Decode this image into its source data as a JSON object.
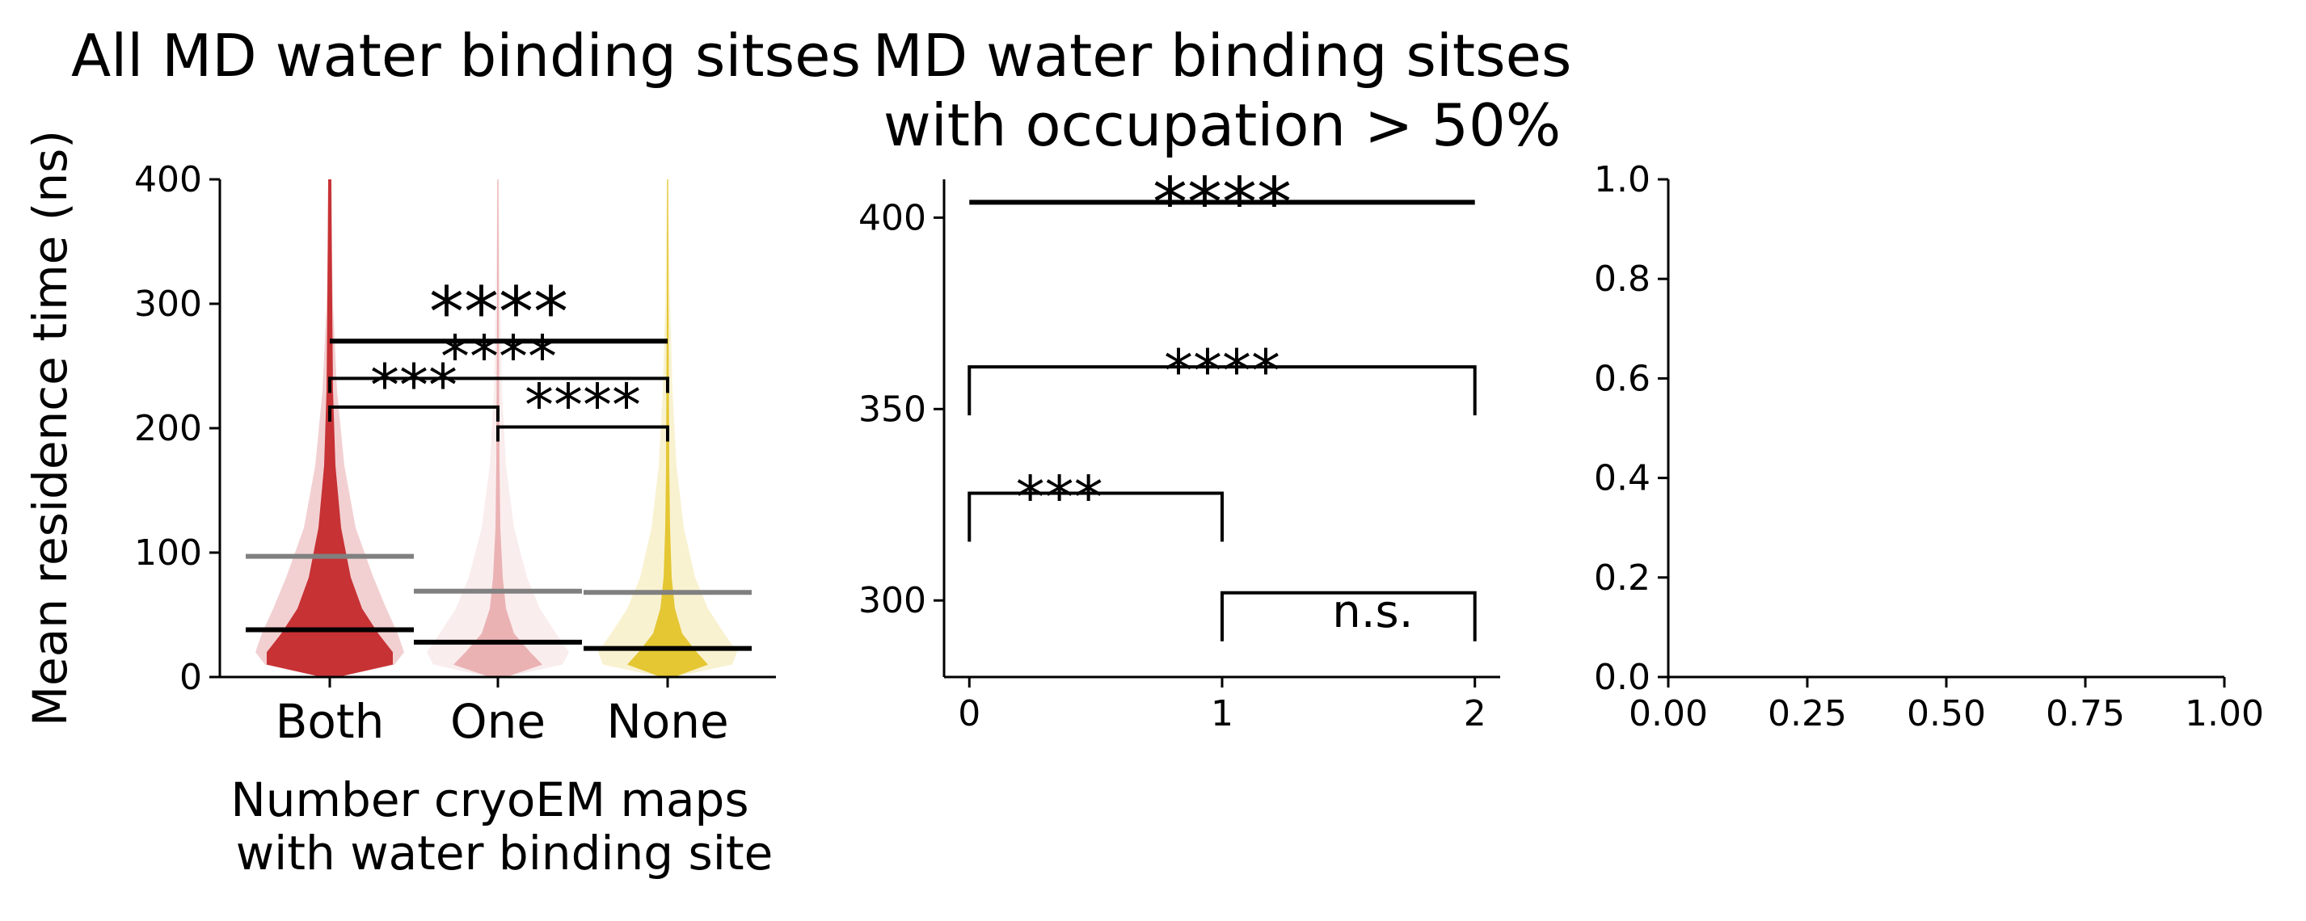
{
  "chart_data": [
    {
      "type": "violin",
      "title": "All MD water binding sitses",
      "xlabel": "Number cryoEM maps \n with water binding site",
      "ylabel": "Mean residence time (ns)",
      "categories": [
        "Both",
        "One",
        "None"
      ],
      "ylim": [
        0,
        400
      ],
      "yticks": [
        0,
        100,
        200,
        300,
        400
      ],
      "colors": {
        "Both": "#c0161a",
        "One": "#e8a7a9",
        "None": "#e0bf18"
      },
      "summary_colors": {
        "median": "#000000",
        "mean": "#808080"
      },
      "series": [
        {
          "category": "Both",
          "mean": 97,
          "median": 38
        },
        {
          "category": "One",
          "mean": 69,
          "median": 28
        },
        {
          "category": "None",
          "mean": 68,
          "median": 23
        }
      ],
      "significance": [
        {
          "pair": [
            "Both",
            "One"
          ],
          "label": "***",
          "y": 217
        },
        {
          "pair": [
            "One",
            "None"
          ],
          "label": "****",
          "y": 201
        },
        {
          "pair": [
            "Both",
            "None"
          ],
          "label": "****",
          "y": 240
        },
        {
          "pair": [
            "Both",
            "None"
          ],
          "label": "****",
          "y": 270
        }
      ]
    },
    {
      "type": "scatter",
      "title": "MD water binding sitses \n with occupation > 50%",
      "xlim": [
        -0.1,
        2.1
      ],
      "xticks": [
        0,
        1,
        2
      ],
      "ylim": [
        280,
        410
      ],
      "yticks": [
        300,
        350,
        400
      ],
      "series": [],
      "significance": [
        {
          "pair": [
            0,
            1
          ],
          "label": "***",
          "y": 328
        },
        {
          "pair": [
            1,
            2
          ],
          "label": "n.s.",
          "y": 302
        },
        {
          "pair": [
            0,
            2
          ],
          "label": "****",
          "y": 361
        },
        {
          "pair": [
            0,
            2
          ],
          "label": "****",
          "y": 404
        }
      ]
    },
    {
      "type": "scatter",
      "title": "",
      "xlim": [
        0,
        1
      ],
      "xticks": [
        0.0,
        0.25,
        0.5,
        0.75,
        1.0
      ],
      "xticklabels": [
        "0.00",
        "0.25",
        "0.50",
        "0.75",
        "1.00"
      ],
      "ylim": [
        0,
        1
      ],
      "yticks": [
        0.0,
        0.2,
        0.4,
        0.6,
        0.8,
        1.0
      ],
      "yticklabels": [
        "0.0",
        "0.2",
        "0.4",
        "0.6",
        "0.8",
        "1.0"
      ],
      "series": []
    }
  ]
}
